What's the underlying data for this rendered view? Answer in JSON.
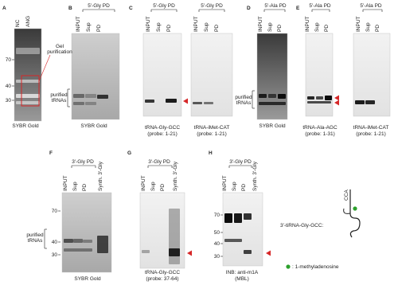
{
  "panels": [
    {
      "letter": "A",
      "lanes": [
        "NC",
        "ANG"
      ],
      "markers": [
        "70",
        "40",
        "30"
      ],
      "annotation": [
        "Gel",
        "purification"
      ],
      "caption": [
        "SYBR Gold"
      ]
    },
    {
      "letter": "B",
      "header": "5'-Gly PD",
      "lanes": [
        "INPUT",
        "Sup",
        "PD"
      ],
      "side_label": [
        "purified",
        "tRNAs"
      ],
      "caption": [
        "SYBR Gold"
      ]
    },
    {
      "letter": "C",
      "blots": [
        {
          "header": "5'-Gly PD",
          "lanes": [
            "INPUT",
            "Sup",
            "PD"
          ],
          "caption": [
            "tRNA-Gly-GCC",
            "(probe: 1-21)"
          ]
        },
        {
          "header": "5'-Gly PD",
          "lanes": [
            "INPUT",
            "Sup",
            "PD"
          ],
          "caption": [
            "tRNA-iMet-CAT",
            "(probe: 1-21)"
          ]
        }
      ]
    },
    {
      "letter": "D",
      "header": "5'-Ala PD",
      "lanes": [
        "INPUT",
        "Sup",
        "PD"
      ],
      "side_label": [
        "purified",
        "tRNAs"
      ],
      "caption": [
        "SYBR Gold"
      ]
    },
    {
      "letter": "E",
      "blots": [
        {
          "header": "5'-Ala PD",
          "lanes": [
            "INPUT",
            "Sup",
            "PD"
          ],
          "caption": [
            "tRNA-Ala-AGC",
            "(probe: 1-31)"
          ]
        },
        {
          "header": "5'-Ala PD",
          "lanes": [
            "INPUT",
            "Sup",
            "PD"
          ],
          "caption": [
            "tRNA-iMet-CAT",
            "(probe: 1-21)"
          ]
        }
      ]
    },
    {
      "letter": "F",
      "header": "3'-Gly PD",
      "lanes": [
        "INPUT",
        "Sup",
        "PD",
        "Synth. 3'-Gly"
      ],
      "markers": [
        "70",
        "40",
        "30"
      ],
      "side_label": [
        "purified",
        "tRNAs"
      ],
      "caption": [
        "SYBR Gold"
      ]
    },
    {
      "letter": "G",
      "header": "3'-Gly PD",
      "lanes": [
        "INPUT",
        "Sup",
        "PD",
        "Synth. 3'-Gly"
      ],
      "caption": [
        "tRNA-Gly-GCC",
        "(probe: 37-64)"
      ]
    },
    {
      "letter": "H",
      "header": "3'-Gly PD",
      "lanes": [
        "INPUT",
        "Sup",
        "PD",
        "Synth. 3'-Gly"
      ],
      "markers": [
        "70",
        "50",
        "40",
        "30"
      ],
      "caption": [
        "INB: anti-m1A",
        "(MBL)"
      ]
    }
  ],
  "legend": {
    "molecule": "3'-tiRNA-Gly-GCC:",
    "end": "CCA",
    "modification": ": 1-methyladenosine"
  }
}
